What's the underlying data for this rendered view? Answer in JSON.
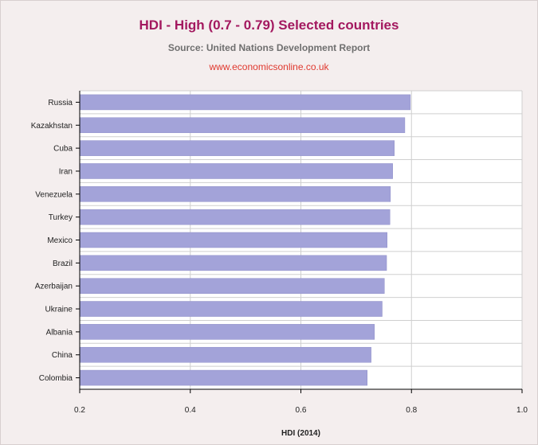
{
  "header": {
    "title": "HDI - High (0.7 - 0.79) Selected countries",
    "subtitle": "Source: United Nations Development Report",
    "website": "www.economicsonline.co.uk"
  },
  "colors": {
    "title": "#a3185f",
    "website": "#e0392f",
    "bar": "#a3a3d9",
    "plot_bg": "#ffffff",
    "grid": "#cfcfcf"
  },
  "chart_data": {
    "type": "bar",
    "orientation": "horizontal",
    "title": "HDI - High (0.7 - 0.79) Selected countries",
    "subtitle": "Source: United Nations Development Report",
    "xlabel": "HDI (2014)",
    "ylabel": "",
    "xlim": [
      0.2,
      1.0
    ],
    "xticks": [
      "0.2",
      "0.4",
      "0.6",
      "0.8",
      "1.0"
    ],
    "grid": true,
    "categories": [
      "Russia",
      "Kazakhstan",
      "Cuba",
      "Iran",
      "Venezuela",
      "Turkey",
      "Mexico",
      "Brazil",
      "Azerbaijan",
      "Ukraine",
      "Albania",
      "China",
      "Colombia"
    ],
    "values": [
      0.798,
      0.788,
      0.769,
      0.766,
      0.762,
      0.761,
      0.756,
      0.755,
      0.751,
      0.747,
      0.733,
      0.727,
      0.72
    ]
  }
}
